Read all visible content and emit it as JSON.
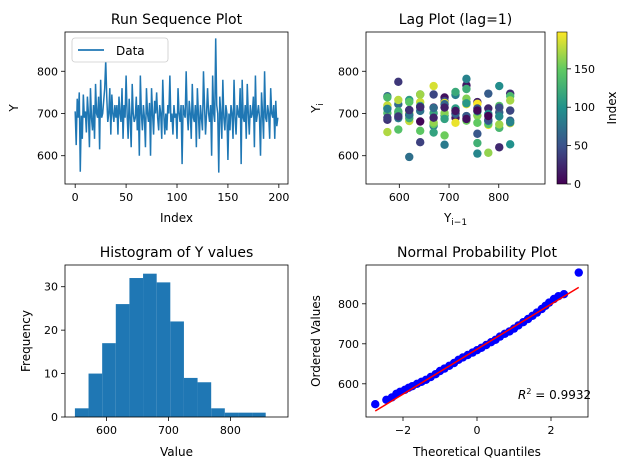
{
  "chart_data": [
    {
      "type": "line",
      "title": "Run Sequence Plot",
      "xlabel": "Index",
      "ylabel": "Y",
      "xlim": [
        -10,
        209
      ],
      "ylim": [
        533,
        893
      ],
      "xticks": [
        0,
        50,
        100,
        150,
        200
      ],
      "yticks": [
        600,
        700,
        800
      ],
      "legend": {
        "placement": "upper-left",
        "entries": [
          "Data"
        ]
      },
      "series": [
        {
          "name": "Data",
          "color": "#1f77b4",
          "x_start": 0,
          "x_step": 1,
          "y": [
            705,
            625,
            735,
            690,
            750,
            562,
            695,
            640,
            745,
            690,
            705,
            655,
            740,
            700,
            620,
            760,
            690,
            660,
            720,
            640,
            770,
            700,
            690,
            740,
            615,
            780,
            690,
            700,
            730,
            760,
            825,
            740,
            680,
            700,
            760,
            650,
            745,
            700,
            680,
            720,
            690,
            720,
            650,
            740,
            700,
            680,
            760,
            640,
            720,
            690,
            790,
            700,
            640,
            735,
            690,
            620,
            770,
            700,
            680,
            690,
            740,
            660,
            720,
            600,
            790,
            700,
            660,
            720,
            690,
            620,
            760,
            700,
            680,
            725,
            600,
            760,
            700,
            650,
            730,
            700,
            750,
            690,
            660,
            720,
            700,
            640,
            780,
            700,
            650,
            700,
            660,
            720,
            700,
            790,
            680,
            700,
            650,
            720,
            690,
            700,
            640,
            760,
            700,
            680,
            720,
            580,
            720,
            700,
            690,
            800,
            700,
            660,
            730,
            700,
            640,
            770,
            690,
            680,
            720,
            620,
            760,
            700,
            640,
            720,
            690,
            660,
            800,
            720,
            650,
            700,
            760,
            700,
            680,
            720,
            600,
            790,
            700,
            680,
            878,
            720,
            700,
            560,
            740,
            700,
            640,
            780,
            690,
            660,
            720,
            700,
            590,
            700,
            660,
            720,
            700,
            640,
            780,
            690,
            650,
            720,
            700,
            690,
            760,
            580,
            780,
            690,
            680,
            720,
            640,
            770,
            700,
            650,
            720,
            690,
            700,
            740,
            620,
            790,
            680,
            700,
            720,
            690,
            600,
            750,
            700,
            640,
            800,
            690,
            680,
            720,
            700,
            640,
            760,
            700,
            690,
            720,
            640,
            730,
            670,
            690
          ]
        }
      ]
    },
    {
      "type": "scatter",
      "title": "Lag Plot (lag=1)",
      "xlabel": "Y_{i-1}",
      "ylabel": "Y_i",
      "xlim": [
        533,
        893
      ],
      "ylim": [
        533,
        893
      ],
      "xticks": [
        600,
        700,
        800
      ],
      "yticks": [
        600,
        700,
        800
      ],
      "colorbar": {
        "label": "Index",
        "range": [
          0,
          198
        ],
        "ticks": [
          0,
          50,
          100,
          150
        ],
        "colormap": "viridis"
      },
      "points": [
        [
          620,
          708,
          0
        ],
        [
          642,
          681,
          3
        ],
        [
          669,
          714,
          6
        ],
        [
          691,
          738,
          9
        ],
        [
          713,
          690,
          12
        ],
        [
          735,
          767,
          15
        ],
        [
          757,
          727,
          18
        ],
        [
          779,
          712,
          21
        ],
        [
          801,
          620,
          24
        ],
        [
          823,
          747,
          27
        ],
        [
          576,
          685,
          30
        ],
        [
          598,
          775,
          33
        ],
        [
          620,
          696,
          36
        ],
        [
          642,
          632,
          39
        ],
        [
          669,
          745,
          42
        ],
        [
          691,
          729,
          45
        ],
        [
          713,
          699,
          48
        ],
        [
          735,
          726,
          51
        ],
        [
          757,
          652,
          54
        ],
        [
          779,
          747,
          57
        ],
        [
          801,
          703,
          60
        ],
        [
          823,
          683,
          63
        ],
        [
          576,
          741,
          66
        ],
        [
          598,
          722,
          69
        ],
        [
          620,
          597,
          72
        ],
        [
          642,
          706,
          75
        ],
        [
          669,
          671,
          78
        ],
        [
          691,
          626,
          81
        ],
        [
          713,
          744,
          84
        ],
        [
          735,
          782,
          87
        ],
        [
          757,
          605,
          90
        ],
        [
          779,
          699,
          93
        ],
        [
          801,
          765,
          96
        ],
        [
          823,
          627,
          99
        ],
        [
          576,
          713,
          102
        ],
        [
          598,
          699,
          105
        ],
        [
          620,
          732,
          108
        ],
        [
          642,
          745,
          111
        ],
        [
          669,
          655,
          114
        ],
        [
          691,
          695,
          117
        ],
        [
          713,
          751,
          120
        ],
        [
          735,
          758,
          123
        ],
        [
          757,
          630,
          126
        ],
        [
          779,
          686,
          129
        ],
        [
          801,
          666,
          132
        ],
        [
          823,
          741,
          135
        ],
        [
          576,
          701,
          138
        ],
        [
          598,
          662,
          141
        ],
        [
          620,
          727,
          144
        ],
        [
          642,
          659,
          147
        ],
        [
          669,
          675,
          150
        ],
        [
          691,
          648,
          153
        ],
        [
          713,
          707,
          156
        ],
        [
          735,
          735,
          159
        ],
        [
          757,
          695,
          162
        ],
        [
          779,
          607,
          165
        ],
        [
          801,
          674,
          168
        ],
        [
          823,
          731,
          171
        ],
        [
          576,
          656,
          174
        ],
        [
          598,
          704,
          177
        ],
        [
          620,
          682,
          180
        ],
        [
          642,
          727,
          183
        ],
        [
          669,
          765,
          186
        ],
        [
          691,
          725,
          189
        ],
        [
          713,
          678,
          192
        ],
        [
          735,
          722,
          195
        ],
        [
          757,
          723,
          197
        ],
        [
          779,
          673,
          193
        ],
        [
          801,
          714,
          189
        ],
        [
          823,
          677,
          185
        ],
        [
          576,
          719,
          181
        ],
        [
          598,
          732,
          177
        ],
        [
          620,
          701,
          173
        ],
        [
          642,
          745,
          169
        ],
        [
          669,
          679,
          165
        ],
        [
          691,
          701,
          161
        ],
        [
          713,
          711,
          157
        ],
        [
          735,
          683,
          153
        ],
        [
          757,
          678,
          149
        ],
        [
          779,
          675,
          145
        ],
        [
          801,
          718,
          141
        ],
        [
          823,
          707,
          137
        ],
        [
          576,
          738,
          133
        ],
        [
          598,
          705,
          129
        ],
        [
          620,
          689,
          125
        ],
        [
          642,
          718,
          121
        ],
        [
          669,
          701,
          117
        ],
        [
          691,
          687,
          113
        ],
        [
          713,
          712,
          109
        ],
        [
          735,
          724,
          105
        ],
        [
          757,
          705,
          101
        ],
        [
          779,
          682,
          97
        ],
        [
          801,
          693,
          93
        ],
        [
          823,
          679,
          89
        ],
        [
          576,
          711,
          85
        ],
        [
          598,
          689,
          81
        ],
        [
          620,
          697,
          77
        ],
        [
          642,
          716,
          73
        ],
        [
          669,
          713,
          69
        ],
        [
          691,
          722,
          65
        ],
        [
          713,
          700,
          61
        ],
        [
          735,
          694,
          57
        ],
        [
          757,
          712,
          53
        ],
        [
          779,
          684,
          49
        ],
        [
          801,
          714,
          45
        ],
        [
          823,
          707,
          41
        ],
        [
          576,
          690,
          37
        ],
        [
          598,
          693,
          33
        ],
        [
          620,
          708,
          29
        ],
        [
          642,
          715,
          25
        ],
        [
          669,
          690,
          21
        ],
        [
          691,
          714,
          17
        ],
        [
          713,
          706,
          13
        ],
        [
          735,
          687,
          9
        ],
        [
          757,
          707,
          5
        ],
        [
          779,
          694,
          1
        ]
      ]
    },
    {
      "type": "bar",
      "title": "Histogram of Y values",
      "xlabel": "Value",
      "ylabel": "Frequency",
      "xlim": [
        533,
        893
      ],
      "ylim": [
        0,
        35
      ],
      "xticks": [
        600,
        700,
        800
      ],
      "yticks": [
        0,
        10,
        20,
        30
      ],
      "bin_edges": [
        549,
        571,
        593,
        615,
        637,
        659,
        681,
        703,
        725,
        747,
        769,
        791,
        813,
        835,
        857,
        879
      ],
      "values": [
        2,
        10,
        17,
        26,
        32,
        33,
        31,
        22,
        9,
        8,
        2,
        1,
        1,
        1,
        0
      ],
      "color": "#1f77b4"
    },
    {
      "type": "scatter",
      "title": "Normal Probability Plot",
      "xlabel": "Theoretical Quantiles",
      "ylabel": "Ordered Values",
      "xlim": [
        -3.0,
        3.0
      ],
      "ylim": [
        517,
        897
      ],
      "xticks": [
        -2,
        0,
        2
      ],
      "yticks": [
        600,
        700,
        800
      ],
      "fit_line": {
        "x": [
          -2.75,
          2.75
        ],
        "y": [
          532,
          841
        ],
        "color": "#ff0000"
      },
      "annotation": "R^2 = 0.9932",
      "points_color": "#0000ff",
      "points": [
        [
          -2.75,
          549
        ],
        [
          -2.45,
          560
        ],
        [
          -2.3,
          566
        ],
        [
          -2.18,
          575
        ],
        [
          -2.08,
          580
        ],
        [
          -1.95,
          585
        ],
        [
          -1.85,
          590
        ],
        [
          -1.75,
          594
        ],
        [
          -1.62,
          600
        ],
        [
          -1.5,
          605
        ],
        [
          -1.38,
          610
        ],
        [
          -1.25,
          617
        ],
        [
          -1.12,
          624
        ],
        [
          -1.0,
          632
        ],
        [
          -0.88,
          638
        ],
        [
          -0.75,
          645
        ],
        [
          -0.62,
          652
        ],
        [
          -0.5,
          660
        ],
        [
          -0.38,
          666
        ],
        [
          -0.25,
          672
        ],
        [
          -0.12,
          678
        ],
        [
          0.0,
          684
        ],
        [
          0.12,
          690
        ],
        [
          0.25,
          697
        ],
        [
          0.38,
          704
        ],
        [
          0.5,
          710
        ],
        [
          0.62,
          718
        ],
        [
          0.75,
          725
        ],
        [
          0.88,
          731
        ],
        [
          1.0,
          738
        ],
        [
          1.12,
          746
        ],
        [
          1.25,
          754
        ],
        [
          1.38,
          762
        ],
        [
          1.5,
          770
        ],
        [
          1.62,
          778
        ],
        [
          1.75,
          787
        ],
        [
          1.85,
          795
        ],
        [
          1.95,
          803
        ],
        [
          2.08,
          812
        ],
        [
          2.2,
          819
        ],
        [
          2.35,
          824
        ],
        [
          2.75,
          878
        ]
      ]
    }
  ]
}
